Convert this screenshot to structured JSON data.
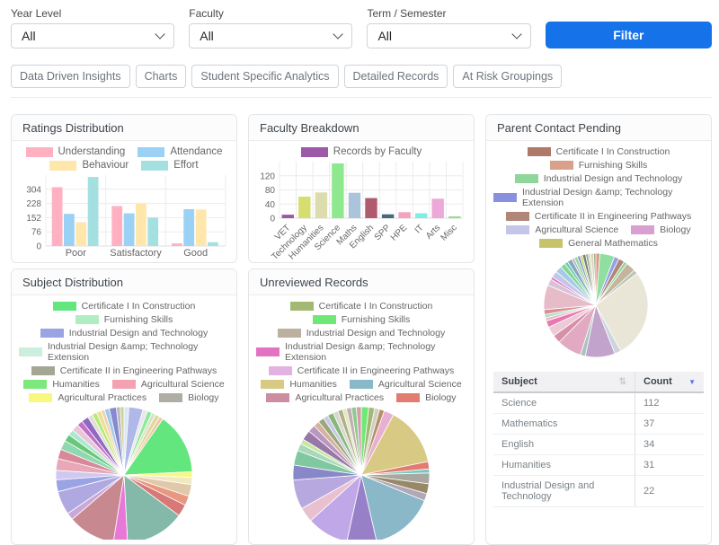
{
  "filters": {
    "fields": [
      {
        "label": "Year Level",
        "value": "All"
      },
      {
        "label": "Faculty",
        "value": "All"
      },
      {
        "label": "Term / Semester",
        "value": "All"
      }
    ],
    "button": "Filter"
  },
  "nav": [
    "Data Driven Insights",
    "Charts",
    "Student Specific Analytics",
    "Detailed Records",
    "At Risk Groupings"
  ],
  "cards": {
    "ratings": {
      "title": "Ratings Distribution"
    },
    "faculty": {
      "title": "Faculty Breakdown"
    },
    "parent": {
      "title": "Parent Contact Pending"
    },
    "subject": {
      "title": "Subject Distribution"
    },
    "unreviewed": {
      "title": "Unreviewed Records"
    }
  },
  "colors": {
    "accent": "#1672e8",
    "legend_text": "#666666",
    "axis_text": "#666666"
  },
  "chart_data": [
    {
      "id": "ratings-distribution",
      "type": "bar",
      "title": "Ratings Distribution",
      "categories": [
        "Poor",
        "Satisfactory",
        "Good"
      ],
      "series": [
        {
          "name": "Understanding",
          "color": "#ffb1c2",
          "values": [
            315,
            214,
            14
          ]
        },
        {
          "name": "Attendance",
          "color": "#9bd1f5",
          "values": [
            172,
            175,
            197
          ]
        },
        {
          "name": "Behaviour",
          "color": "#ffe6ab",
          "values": [
            127,
            228,
            196
          ]
        },
        {
          "name": "Effort",
          "color": "#a5e0e0",
          "values": [
            370,
            152,
            20
          ]
        }
      ],
      "yticks": [
        0,
        76,
        152,
        228,
        304
      ],
      "ymax": 380,
      "grid": true,
      "legend_position": "top"
    },
    {
      "id": "faculty-breakdown",
      "type": "bar",
      "title": "Faculty Breakdown",
      "legend": "Records by Faculty",
      "legend_color": "#9c59a8",
      "categories": [
        "VET",
        "Technology",
        "Humanities",
        "Science",
        "Maths",
        "English",
        "SPP",
        "HPE",
        "IT",
        "Arts",
        "Misc"
      ],
      "values": [
        10,
        61,
        73,
        155,
        72,
        57,
        11,
        17,
        14,
        55,
        5
      ],
      "colors": [
        "#a0589c",
        "#d6de70",
        "#dddcae",
        "#8ee88e",
        "#aac4dc",
        "#b05a70",
        "#48687e",
        "#f4a2c0",
        "#7deee6",
        "#eba8d8",
        "#9cd88c"
      ],
      "yticks": [
        0,
        40,
        80,
        120
      ],
      "ymax": 160,
      "grid": true,
      "legend_position": "top"
    },
    {
      "id": "parent-contact-pending",
      "type": "pie",
      "title": "Parent Contact Pending",
      "legend": [
        {
          "label": "Certificate I In Construction",
          "color": "#b07868"
        },
        {
          "label": "Furnishing Skills",
          "color": "#d9a08c"
        },
        {
          "label": "Industrial Design and Technology",
          "color": "#8fd69b"
        },
        {
          "label": "Industrial Design &amp; Technology Extension",
          "color": "#8a90e0"
        },
        {
          "label": "Certificate II in Engineering Pathways",
          "color": "#b08678"
        },
        {
          "label": "Agricultural Science",
          "color": "#c3c6e8"
        },
        {
          "label": "Biology",
          "color": "#d8a0d0"
        },
        {
          "label": "General Mathematics",
          "color": "#c6c46a"
        }
      ],
      "slices": [
        {
          "color": "#e09580",
          "value": 1.2
        },
        {
          "color": "#8fe0a0",
          "value": 4.5
        },
        {
          "color": "#98a0e6",
          "value": 1.5
        },
        {
          "color": "#b08678",
          "value": 1.8
        },
        {
          "color": "#8fd69b",
          "value": 1.0
        },
        {
          "color": "#c4b69c",
          "value": 3.0
        },
        {
          "color": "#b8c4b0",
          "value": 1.2
        },
        {
          "color": "#e9e6d8",
          "value": 27
        },
        {
          "color": "#ccd4dc",
          "value": 2.0
        },
        {
          "color": "#c2a3cb",
          "value": 9.0
        },
        {
          "color": "#a8c4c0",
          "value": 1.5
        },
        {
          "color": "#e2aac2",
          "value": 7.5
        },
        {
          "color": "#d890a8",
          "value": 2.5
        },
        {
          "color": "#eccad6",
          "value": 3.0
        },
        {
          "color": "#e878b0",
          "value": 2.0
        },
        {
          "color": "#f0bac8",
          "value": 1.0
        },
        {
          "color": "#a8e0c0",
          "value": 1.0
        },
        {
          "color": "#d89098",
          "value": 1.5
        },
        {
          "color": "#e6bcc8",
          "value": 7.5
        },
        {
          "color": "#d8c2d8",
          "value": 2.0
        },
        {
          "color": "#e070c0",
          "value": 0.8
        },
        {
          "color": "#c3c6e8",
          "value": 2.0
        },
        {
          "color": "#a8c8e8",
          "value": 2.0
        },
        {
          "color": "#80d890",
          "value": 1.5
        },
        {
          "color": "#70c8b8",
          "value": 1.0
        },
        {
          "color": "#88a8b8",
          "value": 1.5
        },
        {
          "color": "#b0b8c0",
          "value": 0.8
        },
        {
          "color": "#98d8a0",
          "value": 1.0
        },
        {
          "color": "#7890c8",
          "value": 0.8
        },
        {
          "color": "#c8d870",
          "value": 0.8
        },
        {
          "color": "#788078",
          "value": 1.0
        },
        {
          "color": "#a0a8a0",
          "value": 0.8
        },
        {
          "color": "#d0e0a0",
          "value": 0.7
        },
        {
          "color": "#e0d0b0",
          "value": 0.9
        },
        {
          "color": "#90b0a0",
          "value": 0.7
        }
      ],
      "table": {
        "columns": [
          "Subject",
          "Count"
        ],
        "rows": [
          [
            "Science",
            112
          ],
          [
            "Mathematics",
            37
          ],
          [
            "English",
            34
          ],
          [
            "Humanities",
            31
          ],
          [
            "Industrial Design and Technology",
            22
          ]
        ],
        "sort": {
          "column": "Count",
          "direction": "desc"
        }
      }
    },
    {
      "id": "subject-distribution",
      "type": "pie",
      "title": "Subject Distribution",
      "legend": [
        {
          "label": "Certificate I In Construction",
          "color": "#63e67e"
        },
        {
          "label": "Furnishing Skills",
          "color": "#aeeec2"
        },
        {
          "label": "Industrial Design and Technology",
          "color": "#9aa4e2"
        },
        {
          "label": "Industrial Design &amp; Technology Extension",
          "color": "#cceedd"
        },
        {
          "label": "Certificate II in Engineering Pathways",
          "color": "#a6a694"
        },
        {
          "label": "Humanities",
          "color": "#7ce87e"
        },
        {
          "label": "Agricultural Science",
          "color": "#f2a2b0"
        },
        {
          "label": "Agricultural Practices",
          "color": "#f8f87e"
        },
        {
          "label": "Biology",
          "color": "#b0aca6"
        }
      ],
      "slices": [
        {
          "color": "#d8e8f0",
          "value": 1.0
        },
        {
          "color": "#b0b8e8",
          "value": 3.0
        },
        {
          "color": "#e8e8e8",
          "value": 1.0
        },
        {
          "color": "#90e89c",
          "value": 1.0
        },
        {
          "color": "#d0e8c0",
          "value": 0.8
        },
        {
          "color": "#e0d8a0",
          "value": 1.0
        },
        {
          "color": "#f0c8a0",
          "value": 0.8
        },
        {
          "color": "#63e67e",
          "value": 13
        },
        {
          "color": "#f8f87e",
          "value": 1.2
        },
        {
          "color": "#f0e8c0",
          "value": 1.5
        },
        {
          "color": "#e0c8a8",
          "value": 2.5
        },
        {
          "color": "#e89880",
          "value": 2.0
        },
        {
          "color": "#d87878",
          "value": 2.5
        },
        {
          "color": "#84b8a8",
          "value": 12.5
        },
        {
          "color": "#e878d8",
          "value": 3.0
        },
        {
          "color": "#c88890",
          "value": 10
        },
        {
          "color": "#c8a8d8",
          "value": 1.5
        },
        {
          "color": "#b0a8e0",
          "value": 5.0
        },
        {
          "color": "#9aa4e2",
          "value": 2.5
        },
        {
          "color": "#d0c8f0",
          "value": 2.0
        },
        {
          "color": "#e8a8b8",
          "value": 2.5
        },
        {
          "color": "#d88898",
          "value": 2.0
        },
        {
          "color": "#90d8b0",
          "value": 2.0
        },
        {
          "color": "#68c878",
          "value": 1.5
        },
        {
          "color": "#a8e8d0",
          "value": 1.2
        },
        {
          "color": "#e8c8d8",
          "value": 1.5
        },
        {
          "color": "#c070c8",
          "value": 1.2
        },
        {
          "color": "#9068c0",
          "value": 1.5
        },
        {
          "color": "#e0e0d0",
          "value": 1.0
        },
        {
          "color": "#b8e878",
          "value": 1.0
        },
        {
          "color": "#e8e098",
          "value": 1.0
        },
        {
          "color": "#f0d0b0",
          "value": 0.8
        },
        {
          "color": "#a0c8e8",
          "value": 1.0
        },
        {
          "color": "#8888d0",
          "value": 1.5
        },
        {
          "color": "#b8b8b8",
          "value": 0.8
        },
        {
          "color": "#d0d0a0",
          "value": 0.8
        }
      ]
    },
    {
      "id": "unreviewed-records",
      "type": "pie",
      "title": "Unreviewed Records",
      "legend": [
        {
          "label": "Certificate I In Construction",
          "color": "#a2b873"
        },
        {
          "label": "Furnishing Skills",
          "color": "#70e878"
        },
        {
          "label": "Industrial Design and Technology",
          "color": "#bcb0a0"
        },
        {
          "label": "Industrial Design &amp; Technology Extension",
          "color": "#e273c3"
        },
        {
          "label": "Certificate II in Engineering Pathways",
          "color": "#e2b2e2"
        },
        {
          "label": "Humanities",
          "color": "#d8ca85"
        },
        {
          "label": "Agricultural Science",
          "color": "#8ab8c8"
        },
        {
          "label": "Agricultural Practices",
          "color": "#cc8da0"
        },
        {
          "label": "Biology",
          "color": "#e27b70"
        }
      ],
      "slices": [
        {
          "color": "#70e878",
          "value": 1.5
        },
        {
          "color": "#a2b873",
          "value": 1.2
        },
        {
          "color": "#d0d0c0",
          "value": 1.0
        },
        {
          "color": "#b89068",
          "value": 1.0
        },
        {
          "color": "#e8b0d0",
          "value": 2.0
        },
        {
          "color": "#d8ca85",
          "value": 12
        },
        {
          "color": "#e27b70",
          "value": 1.5
        },
        {
          "color": "#78c8c0",
          "value": 0.8
        },
        {
          "color": "#a8a8a0",
          "value": 2.2
        },
        {
          "color": "#988868",
          "value": 2.0
        },
        {
          "color": "#b0a8b8",
          "value": 1.5
        },
        {
          "color": "#8ab8c8",
          "value": 13
        },
        {
          "color": "#9880c8",
          "value": 6.0
        },
        {
          "color": "#c0a8e8",
          "value": 8.5
        },
        {
          "color": "#e8c0d0",
          "value": 3.0
        },
        {
          "color": "#b8a8e0",
          "value": 6.0
        },
        {
          "color": "#8888c8",
          "value": 3.0
        },
        {
          "color": "#80c8a0",
          "value": 3.0
        },
        {
          "color": "#a8d8b8",
          "value": 1.5
        },
        {
          "color": "#c8e8a0",
          "value": 1.0
        },
        {
          "color": "#9878a8",
          "value": 2.0
        },
        {
          "color": "#b898c0",
          "value": 1.5
        },
        {
          "color": "#d8b0a0",
          "value": 1.2
        },
        {
          "color": "#98a878",
          "value": 1.2
        },
        {
          "color": "#c8c8e8",
          "value": 1.0
        },
        {
          "color": "#88b878",
          "value": 1.2
        },
        {
          "color": "#d8d8d0",
          "value": 1.0
        },
        {
          "color": "#b0b088",
          "value": 1.0
        },
        {
          "color": "#e0e8c0",
          "value": 0.8
        },
        {
          "color": "#c0b0b0",
          "value": 1.0
        },
        {
          "color": "#90c890",
          "value": 1.0
        },
        {
          "color": "#d0a0a8",
          "value": 1.0
        }
      ]
    }
  ]
}
